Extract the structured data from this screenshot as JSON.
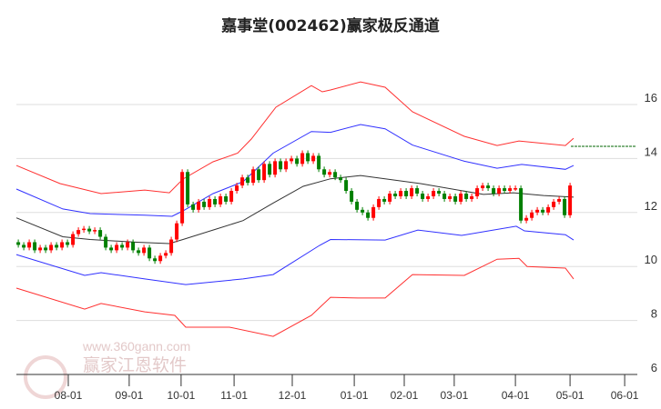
{
  "chart_data": {
    "type": "candlestick-channel",
    "title": "嘉事堂(002462)赢家极反通道",
    "xlabel": "",
    "ylabel": "",
    "ylim": [
      6,
      17
    ],
    "y_ticks": [
      16,
      14,
      12,
      10,
      8,
      6
    ],
    "x_ticks": [
      {
        "label": "08-01",
        "t": 19
      },
      {
        "label": "09-01",
        "t": 41.3
      },
      {
        "label": "10-01",
        "t": 60.3
      },
      {
        "label": "11-01",
        "t": 79.7
      },
      {
        "label": "12-01",
        "t": 101
      },
      {
        "label": "01-01",
        "t": 123.7
      },
      {
        "label": "02-01",
        "t": 142
      },
      {
        "label": "03-01",
        "t": 160.3
      },
      {
        "label": "04-01",
        "t": 182.7
      },
      {
        "label": "05-01",
        "t": 202.7
      },
      {
        "label": "06-01",
        "t": 222.7
      }
    ],
    "grid": true,
    "candles": {
      "start_t": 0.7,
      "step_t": 2,
      "close": [
        10.8,
        10.7,
        10.9,
        10.6,
        10.7,
        10.6,
        10.8,
        10.7,
        10.9,
        10.8,
        11.2,
        11.35,
        11.4,
        11.3,
        11.35,
        11.1,
        10.7,
        10.6,
        10.8,
        10.7,
        10.9,
        10.6,
        10.5,
        10.7,
        10.3,
        10.2,
        10.4,
        10.5,
        11.0,
        11.6,
        13.5,
        12.3,
        12.1,
        12.4,
        12.2,
        12.5,
        12.3,
        12.6,
        12.4,
        12.8,
        13.0,
        13.3,
        13.1,
        13.6,
        13.2,
        13.8,
        13.4,
        13.9,
        13.6,
        13.9,
        14.0,
        13.8,
        14.2,
        13.9,
        14.1,
        13.6,
        13.4,
        13.5,
        13.3,
        13.2,
        12.8,
        12.4,
        12.1,
        12.0,
        11.8,
        12.2,
        12.5,
        12.4,
        12.7,
        12.6,
        12.8,
        12.6,
        12.9,
        12.7,
        12.5,
        12.6,
        12.8,
        12.7,
        12.5,
        12.6,
        12.4,
        12.7,
        12.5,
        12.6,
        12.9,
        13.0,
        12.9,
        12.7,
        12.9,
        12.8,
        12.9,
        12.9,
        11.7,
        11.8,
        12.0,
        12.1,
        12.0,
        12.2,
        12.4,
        12.5,
        11.9,
        13.0
      ],
      "first_open": 10.9,
      "up_color": "#ff0000",
      "down_color": "#007f00"
    },
    "series": [
      {
        "name": "upper-outer",
        "color": "#ff3030",
        "points": [
          [
            0,
            13.74
          ],
          [
            16,
            13.07
          ],
          [
            31,
            12.7
          ],
          [
            47,
            12.83
          ],
          [
            56,
            12.73
          ],
          [
            61,
            13.24
          ],
          [
            72,
            13.88
          ],
          [
            81,
            14.2
          ],
          [
            86,
            14.72
          ],
          [
            95,
            15.9
          ],
          [
            108,
            16.7
          ],
          [
            112,
            16.47
          ],
          [
            115,
            16.54
          ],
          [
            126,
            16.84
          ],
          [
            135,
            16.64
          ],
          [
            145,
            15.73
          ],
          [
            164,
            14.82
          ],
          [
            176,
            14.48
          ],
          [
            184,
            14.65
          ],
          [
            201,
            14.48
          ],
          [
            204,
            14.75
          ]
        ]
      },
      {
        "name": "upper-inner",
        "color": "#3030ff",
        "points": [
          [
            0,
            12.87
          ],
          [
            17,
            12.13
          ],
          [
            27,
            11.96
          ],
          [
            47,
            11.9
          ],
          [
            57,
            11.86
          ],
          [
            61,
            12.06
          ],
          [
            72,
            12.7
          ],
          [
            83,
            13.14
          ],
          [
            94,
            14.2
          ],
          [
            108,
            15.0
          ],
          [
            115,
            14.97
          ],
          [
            126,
            15.26
          ],
          [
            135,
            15.1
          ],
          [
            145,
            14.5
          ],
          [
            164,
            13.9
          ],
          [
            176,
            13.64
          ],
          [
            185,
            13.78
          ],
          [
            201,
            13.6
          ],
          [
            204,
            13.74
          ]
        ]
      },
      {
        "name": "middle",
        "color": "#333333",
        "points": [
          [
            0,
            11.8
          ],
          [
            17,
            11.1
          ],
          [
            27,
            11.0
          ],
          [
            44,
            10.9
          ],
          [
            56,
            10.85
          ],
          [
            61,
            11.0
          ],
          [
            72,
            11.35
          ],
          [
            83,
            11.7
          ],
          [
            94,
            12.35
          ],
          [
            105,
            12.97
          ],
          [
            115,
            13.25
          ],
          [
            126,
            13.37
          ],
          [
            148,
            13.07
          ],
          [
            171,
            12.67
          ],
          [
            182,
            12.73
          ],
          [
            193,
            12.63
          ],
          [
            204,
            12.57
          ]
        ]
      },
      {
        "name": "lower-inner",
        "color": "#3030ff",
        "points": [
          [
            0,
            10.44
          ],
          [
            25,
            9.67
          ],
          [
            31,
            9.77
          ],
          [
            47,
            9.54
          ],
          [
            62,
            9.33
          ],
          [
            83,
            9.54
          ],
          [
            94,
            9.7
          ],
          [
            111,
            10.78
          ],
          [
            115,
            11.0
          ],
          [
            135,
            10.98
          ],
          [
            147,
            11.35
          ],
          [
            163,
            11.15
          ],
          [
            183,
            11.49
          ],
          [
            186,
            11.32
          ],
          [
            201,
            11.18
          ],
          [
            204,
            10.98
          ]
        ]
      },
      {
        "name": "lower-outer",
        "color": "#ff3030",
        "points": [
          [
            0,
            9.2
          ],
          [
            25,
            8.42
          ],
          [
            31,
            8.63
          ],
          [
            47,
            8.32
          ],
          [
            58,
            8.19
          ],
          [
            62,
            7.75
          ],
          [
            78,
            7.75
          ],
          [
            94,
            7.41
          ],
          [
            108,
            8.19
          ],
          [
            115,
            8.86
          ],
          [
            125,
            8.83
          ],
          [
            135,
            8.83
          ],
          [
            145,
            9.7
          ],
          [
            164,
            9.67
          ],
          [
            176,
            10.27
          ],
          [
            184,
            10.3
          ],
          [
            187,
            10.0
          ],
          [
            201,
            9.94
          ],
          [
            204,
            9.54
          ]
        ]
      }
    ],
    "reference_line": {
      "value": 14.45,
      "from_t": 203,
      "to_t": 227,
      "color": "#006400"
    }
  },
  "watermark": {
    "brand": "赢家江恩软件",
    "url": "www.360gann.com",
    "seal": [
      "江",
      "赢",
      "恩",
      "家"
    ]
  }
}
